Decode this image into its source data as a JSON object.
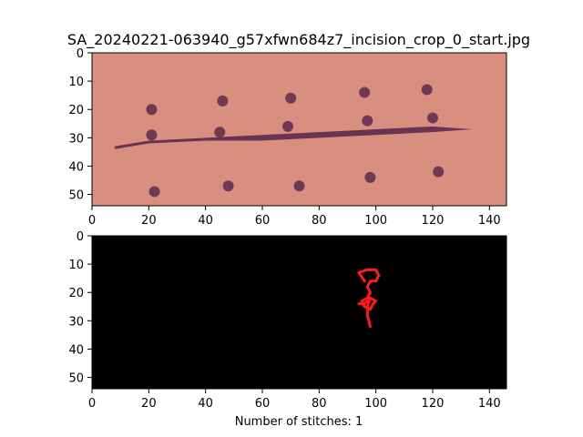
{
  "chart_data": [
    {
      "type": "image",
      "title": "SA_20240221-063940_g57xfwn684z7_incision_crop_0_start.jpg",
      "xlabel": "",
      "ylabel": "",
      "xlim": [
        0,
        146
      ],
      "ylim": [
        0,
        54
      ],
      "y_inverted": true,
      "xticks": [
        0,
        20,
        40,
        60,
        80,
        100,
        120,
        140
      ],
      "yticks": [
        0,
        10,
        20,
        30,
        40,
        50
      ],
      "image": {
        "background_color": "#d98f80",
        "incision_color": "#5b2a4c",
        "incision_path": [
          [
            8,
            34
          ],
          [
            20,
            32
          ],
          [
            40,
            31
          ],
          [
            60,
            31
          ],
          [
            80,
            30
          ],
          [
            100,
            29
          ],
          [
            120,
            28
          ],
          [
            134,
            27
          ],
          [
            120,
            26
          ],
          [
            100,
            27
          ],
          [
            80,
            28
          ],
          [
            60,
            29
          ],
          [
            40,
            30
          ],
          [
            20,
            31
          ],
          [
            8,
            33
          ]
        ],
        "dots": [
          [
            21,
            20
          ],
          [
            46,
            17
          ],
          [
            70,
            16
          ],
          [
            96,
            14
          ],
          [
            118,
            13
          ],
          [
            21,
            29
          ],
          [
            45,
            28
          ],
          [
            69,
            26
          ],
          [
            97,
            24
          ],
          [
            120,
            23
          ],
          [
            22,
            49
          ],
          [
            48,
            47
          ],
          [
            73,
            47
          ],
          [
            98,
            44
          ],
          [
            122,
            42
          ]
        ]
      }
    },
    {
      "type": "image",
      "title": "",
      "xlabel": "Number of stitches: 1",
      "ylabel": "",
      "xlim": [
        0,
        146
      ],
      "ylim": [
        0,
        54
      ],
      "y_inverted": true,
      "xticks": [
        0,
        20,
        40,
        60,
        80,
        100,
        120,
        140
      ],
      "yticks": [
        0,
        10,
        20,
        30,
        40,
        50
      ],
      "image": {
        "background_color": "#000000",
        "stitch_color": "#ff1a1a",
        "stitch_paths": [
          [
            [
              96,
              16
            ],
            [
              94,
              13
            ],
            [
              97,
              12
            ],
            [
              100,
              12
            ],
            [
              101,
              14
            ],
            [
              100,
              16
            ],
            [
              98,
              16
            ],
            [
              97,
              18
            ],
            [
              98,
              20
            ],
            [
              97,
              22
            ],
            [
              95,
              23
            ],
            [
              96,
              25
            ],
            [
              98,
              26
            ],
            [
              99,
              24
            ],
            [
              100,
              23
            ],
            [
              98,
              22
            ],
            [
              97,
              25
            ],
            [
              97,
              28
            ],
            [
              98,
              32
            ]
          ],
          [
            [
              94,
              24
            ],
            [
              96,
              24
            ],
            [
              97,
              23
            ]
          ]
        ]
      }
    }
  ]
}
